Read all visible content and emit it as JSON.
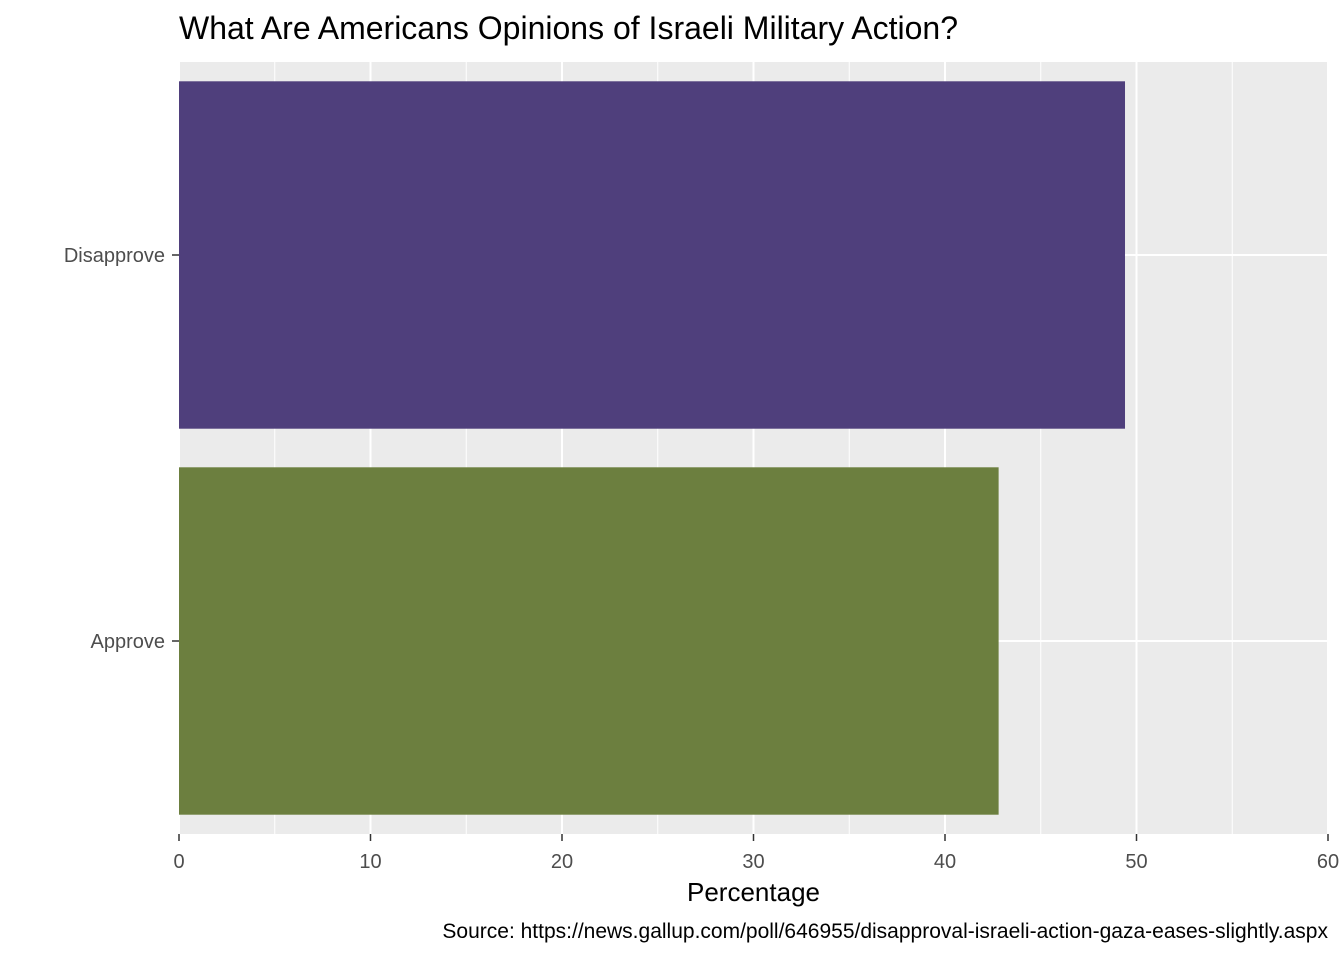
{
  "chart_data": {
    "type": "bar",
    "orientation": "horizontal",
    "title": "What Are Americans Opinions of Israeli Military Action?",
    "xlabel": "Percentage",
    "ylabel": "",
    "caption": "Source: https://news.gallup.com/poll/646955/disapproval-israeli-action-gaza-eases-slightly.aspx",
    "categories": [
      "Disapprove",
      "Approve"
    ],
    "values": [
      49.4,
      42.8
    ],
    "colors": [
      "#4f3f7c",
      "#6c7f3f"
    ],
    "xlim": [
      0,
      60
    ],
    "xticks": [
      "0",
      "10",
      "20",
      "30",
      "40",
      "50",
      "60"
    ],
    "grid": true,
    "panel_background": "#ebebeb",
    "legend": "none"
  }
}
